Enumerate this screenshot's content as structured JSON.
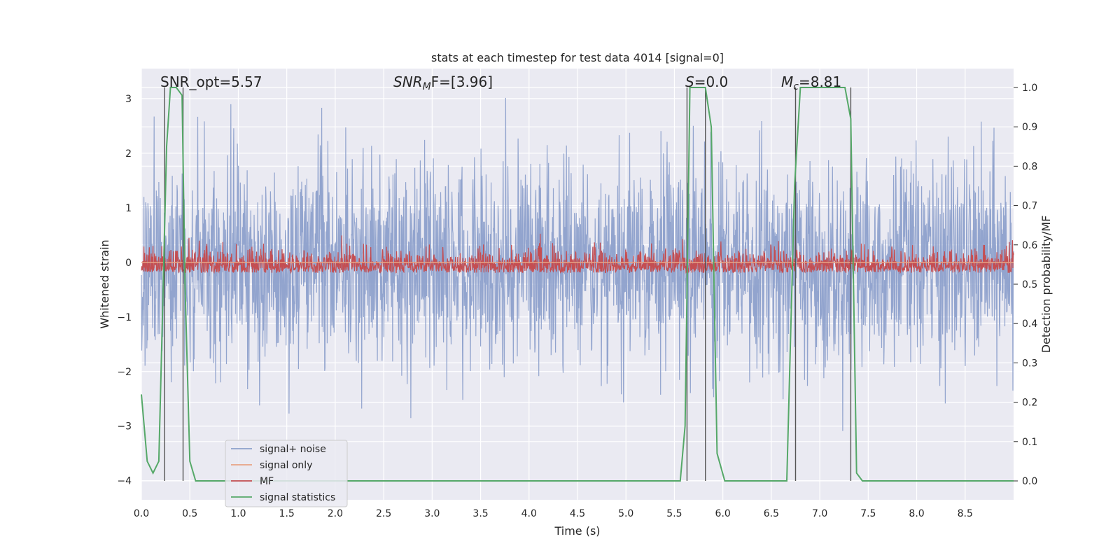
{
  "chart_data": {
    "type": "line",
    "title": "stats at each timestep for test data 4014 [signal=0]",
    "xlabel": "Time (s)",
    "ylabel_left": "Whitened strain",
    "ylabel_right": "Detection probability/MF",
    "xlim": [
      0,
      9
    ],
    "ylim_left": [
      -4.35,
      3.55
    ],
    "ylim_right": [
      -0.048,
      1.048
    ],
    "x_ticks": [
      "0.0",
      "0.5",
      "1.0",
      "1.5",
      "2.0",
      "2.5",
      "3.0",
      "3.5",
      "4.0",
      "4.5",
      "5.0",
      "5.5",
      "6.0",
      "6.5",
      "7.0",
      "7.5",
      "8.0",
      "8.5"
    ],
    "y_left_ticks": [
      "−4",
      "−3",
      "−2",
      "−1",
      "0",
      "1",
      "2",
      "3"
    ],
    "y_right_ticks": [
      "0.0",
      "0.1",
      "0.2",
      "0.3",
      "0.4",
      "0.5",
      "0.6",
      "0.7",
      "0.8",
      "0.9",
      "1.0"
    ],
    "grid": true,
    "legend_position": "lower-left",
    "annotations": {
      "snr_opt": "SNR_opt=5.57",
      "snr_mf_italic": "SNR",
      "snr_mf_sub": "M",
      "snr_mf_rest": "F=[3.96]",
      "s_italic": "S",
      "s_rest": "=0.0",
      "mc_italic": "M",
      "mc_sub": "c",
      "mc_rest": "=8.81"
    },
    "series": [
      {
        "name": "signal+ noise",
        "color": "#8da0cb",
        "description_range": [
          -3.6,
          3.2
        ]
      },
      {
        "name": "signal only",
        "color": "#e8a384",
        "values_constant": 0.0
      },
      {
        "name": "MF",
        "color": "#c44e52",
        "description_range": [
          0.0,
          0.98
        ]
      },
      {
        "name": "signal statistics",
        "color": "#55a868",
        "x": [
          0.0,
          0.06,
          0.12,
          0.18,
          0.22,
          0.26,
          0.3,
          0.36,
          0.42,
          0.45,
          0.5,
          0.56,
          5.56,
          5.61,
          5.66,
          5.74,
          5.82,
          5.88,
          5.94,
          6.02,
          6.3,
          6.66,
          6.74,
          6.8,
          6.9,
          7.26,
          7.32,
          7.38,
          7.44,
          9.0
        ],
        "values": [
          0.22,
          0.05,
          0.02,
          0.05,
          0.45,
          0.85,
          1.0,
          1.0,
          0.98,
          0.5,
          0.05,
          0.0,
          0.0,
          0.14,
          1.0,
          1.0,
          1.0,
          0.9,
          0.07,
          0.0,
          0.0,
          0.0,
          0.75,
          1.0,
          1.0,
          1.0,
          0.92,
          0.02,
          0.0,
          0.0
        ]
      }
    ],
    "vertical_markers": [
      0.24,
      0.43,
      5.63,
      5.82,
      6.75,
      7.32
    ]
  }
}
